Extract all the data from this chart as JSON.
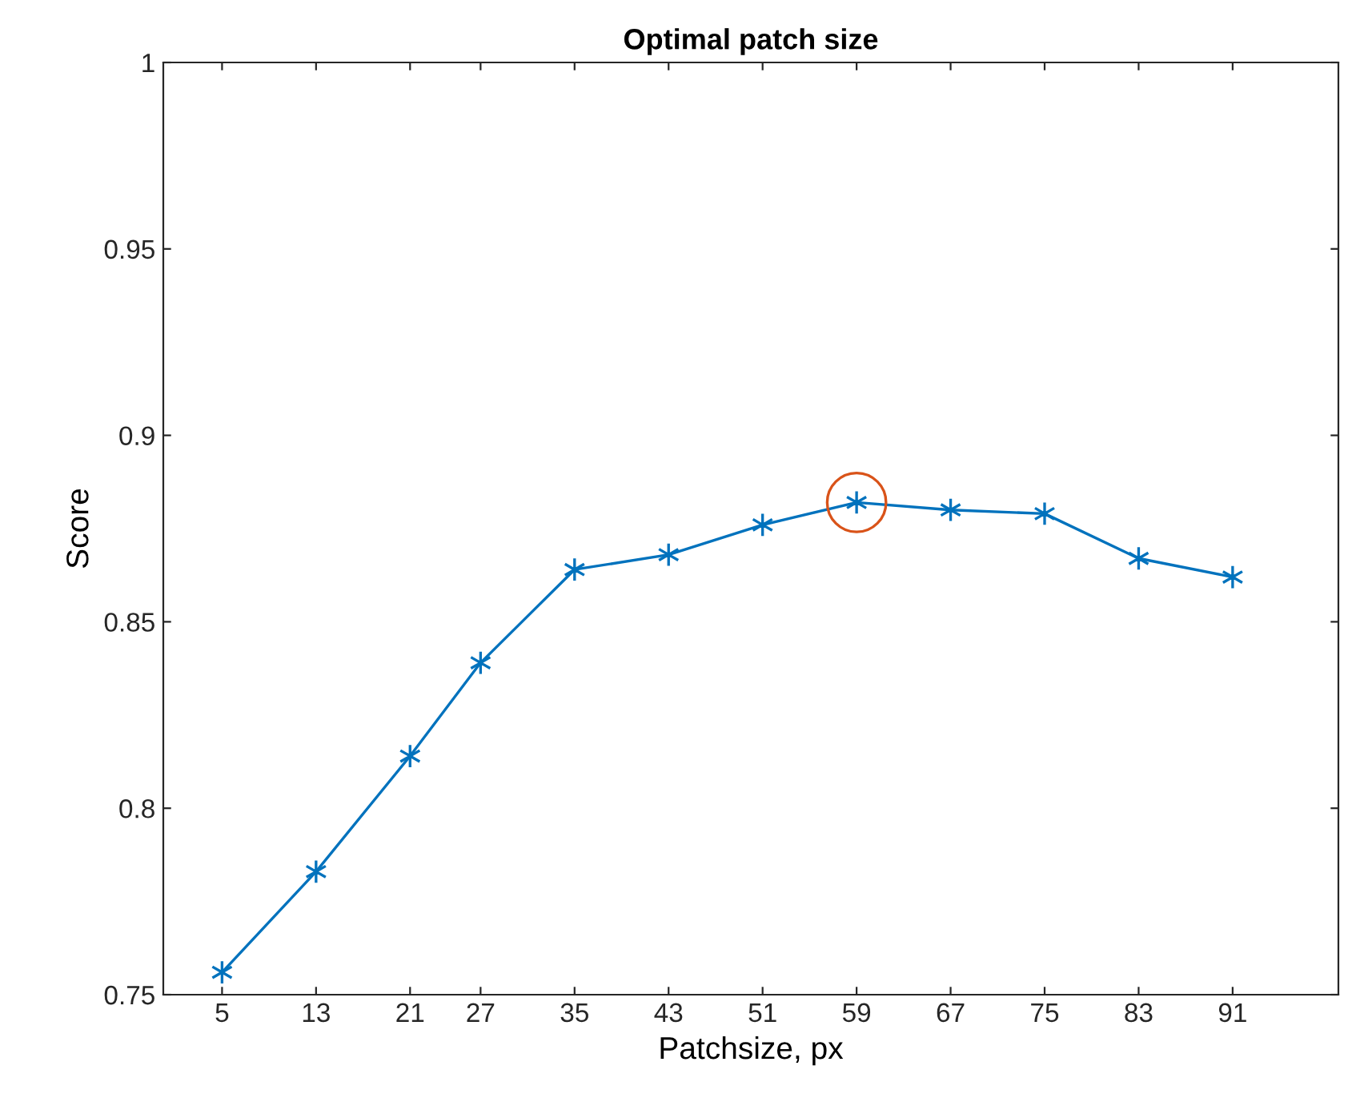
{
  "chart_data": {
    "type": "line",
    "title": "Optimal patch size",
    "xlabel": "Patchsize, px",
    "ylabel": "Score",
    "x": [
      5,
      13,
      21,
      27,
      35,
      43,
      51,
      59,
      67,
      75,
      83,
      91
    ],
    "series": [
      {
        "color": "#0072bd",
        "marker": "cross",
        "line_style": "solid",
        "values": [
          0.756,
          0.783,
          0.814,
          0.839,
          0.864,
          0.868,
          0.876,
          0.882,
          0.88,
          0.879,
          0.867,
          0.862
        ]
      },
      {
        "type": "scatter",
        "color": "#d95319",
        "marker": "circle",
        "x": [
          59
        ],
        "values": [
          0.882
        ]
      }
    ],
    "xlim": [
      0,
      100
    ],
    "ylim": [
      0.75,
      1
    ],
    "xticks": [
      5,
      13,
      21,
      27,
      35,
      43,
      51,
      59,
      67,
      75,
      83,
      91
    ],
    "yticks": [
      0.75,
      0.8,
      0.85,
      0.9,
      0.95,
      1
    ],
    "grid": false
  }
}
